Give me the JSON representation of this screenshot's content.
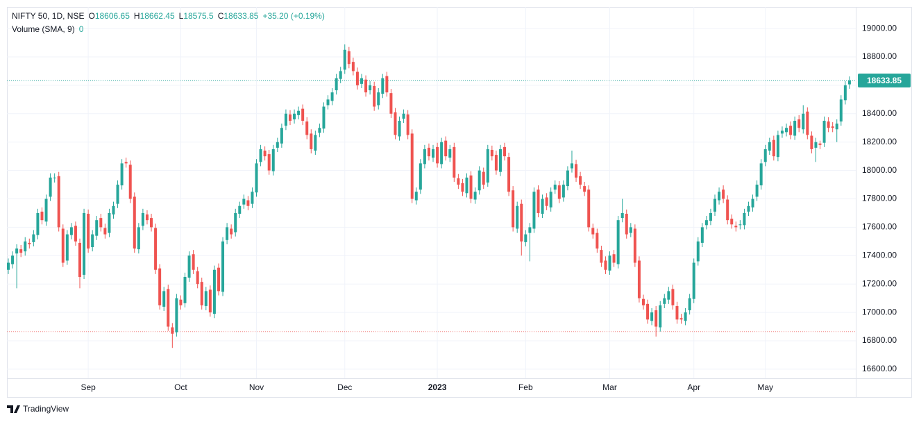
{
  "chart_data": {
    "type": "candlestick",
    "title": "NIFTY 50, 1D, NSE",
    "ohlc_labels": [
      "O",
      "H",
      "L",
      "C"
    ],
    "change": "+35.20 (+0.19%)",
    "indicator": "Volume (SMA, 9)",
    "indicator_value": 0,
    "brand": "TradingView",
    "up_color": "#26a69a",
    "down_color": "#ef5350",
    "grid": true,
    "horizontal_line": {
      "value": 16865,
      "color": "#ef5350"
    },
    "xlim": [
      -0.33,
      201.5
    ],
    "xticks": [
      {
        "value": 19,
        "label": "Sep"
      },
      {
        "value": 41,
        "label": "Oct"
      },
      {
        "value": 59,
        "label": "Nov"
      },
      {
        "value": 80,
        "label": "Dec"
      },
      {
        "value": 102,
        "label": "2023"
      },
      {
        "value": 123,
        "label": "Feb"
      },
      {
        "value": 143,
        "label": "Mar"
      },
      {
        "value": 163,
        "label": "Apr"
      },
      {
        "value": 180,
        "label": "May"
      }
    ],
    "ylim": [
      16536,
      19152
    ],
    "yticks": [
      {
        "value": 16600,
        "label": "16600.00"
      },
      {
        "value": 16800,
        "label": "16800.00"
      },
      {
        "value": 17000,
        "label": "17000.00"
      },
      {
        "value": 17200,
        "label": "17200.00"
      },
      {
        "value": 17400,
        "label": "17400.00"
      },
      {
        "value": 17600,
        "label": "17600.00"
      },
      {
        "value": 17800,
        "label": "17800.00"
      },
      {
        "value": 18000,
        "label": "18000.00"
      },
      {
        "value": 18200,
        "label": "18200.00"
      },
      {
        "value": 18400,
        "label": "18400.00"
      },
      {
        "value": 18600,
        "label": "18600.00"
      },
      {
        "value": 18800,
        "label": "18800.00"
      },
      {
        "value": 19000,
        "label": "19000.00"
      }
    ],
    "open": [
      17300,
      17340,
      17415,
      17445,
      17430,
      17490,
      17495,
      17545,
      17710,
      17640,
      17815,
      17945,
      17960,
      17590,
      17365,
      17545,
      17610,
      17490,
      17265,
      17695,
      17460,
      17540,
      17665,
      17595,
      17560,
      17690,
      17765,
      17895,
      18060,
      18040,
      17815,
      17445,
      17610,
      17690,
      17665,
      17595,
      17310,
      17040,
      17165,
      16895,
      16860,
      17090,
      17065,
      17245,
      17410,
      17290,
      17215,
      17045,
      17160,
      16990,
      17315,
      17145,
      17510,
      17590,
      17565,
      17695,
      17760,
      17790,
      17765,
      17845,
      18060,
      18140,
      18115,
      17995,
      18160,
      18190,
      18315,
      18395,
      18360,
      18390,
      18435,
      18345,
      18260,
      18140,
      18265,
      18295,
      18460,
      18490,
      18565,
      18645,
      18710,
      18840,
      18765,
      18695,
      18610,
      18640,
      18565,
      18595,
      18460,
      18540,
      18665,
      18545,
      18410,
      18240,
      18365,
      18395,
      18260,
      17790,
      17865,
      18045,
      18160,
      18090,
      18165,
      18045,
      18210,
      18090,
      18165,
      17945,
      17910,
      17840,
      17965,
      17795,
      17860,
      17990,
      17915,
      18145,
      18110,
      17990,
      18165,
      18095,
      17860,
      17590,
      17765,
      17495,
      17560,
      17590,
      17865,
      17695,
      17810,
      17740,
      17865,
      17895,
      17810,
      17890,
      18015,
      18045,
      17960,
      17890,
      17865,
      17595,
      17560,
      17440,
      17365,
      17295,
      17410,
      17340,
      17665,
      17695,
      17560,
      17590,
      17365,
      17095,
      17060,
      16940,
      17015,
      16895,
      17060,
      17090,
      17165,
      17045,
      16960,
      16940,
      17015,
      17095,
      17360,
      17490,
      17615,
      17645,
      17710,
      17790,
      17865,
      17795,
      17660,
      17610,
      17615,
      17615,
      17710,
      17740,
      17815,
      17895,
      18060,
      18140,
      18215,
      18095,
      18260,
      18270,
      18315,
      18245,
      18360,
      18290,
      18415,
      18245,
      18160,
      18190,
      18195,
      18345,
      18310,
      18290,
      18345,
      18495,
      18606.65
    ],
    "high": [
      17380,
      17430,
      17480,
      17475,
      17530,
      17520,
      17580,
      17730,
      17740,
      17830,
      17980,
      17980,
      17990,
      17620,
      17580,
      17630,
      17640,
      17520,
      17730,
      17725,
      17580,
      17680,
      17695,
      17625,
      17730,
      17780,
      17930,
      18080,
      18090,
      18070,
      17845,
      17630,
      17730,
      17720,
      17695,
      17625,
      17340,
      17180,
      17195,
      16925,
      17130,
      17120,
      17280,
      17430,
      17440,
      17320,
      17245,
      17180,
      17190,
      17330,
      17345,
      17530,
      17630,
      17620,
      17730,
      17780,
      17830,
      17820,
      17880,
      18080,
      18180,
      18170,
      18145,
      18180,
      18230,
      18330,
      18430,
      18425,
      18430,
      18450,
      18465,
      18375,
      18290,
      18280,
      18330,
      18480,
      18530,
      18580,
      18680,
      18730,
      18888,
      18870,
      18795,
      18725,
      18680,
      18670,
      18630,
      18625,
      18580,
      18680,
      18695,
      18575,
      18440,
      18380,
      18430,
      18425,
      18290,
      17880,
      18080,
      18180,
      18190,
      18180,
      18195,
      18230,
      18240,
      18180,
      18195,
      17975,
      17940,
      17980,
      17995,
      17880,
      18030,
      18020,
      18180,
      18175,
      18140,
      18180,
      18195,
      18125,
      17890,
      17780,
      17795,
      17580,
      17630,
      17880,
      17895,
      17830,
      17840,
      17880,
      17930,
      17925,
      17930,
      18030,
      18140,
      18075,
      17990,
      17920,
      17895,
      17625,
      17590,
      17470,
      17395,
      17430,
      17440,
      17680,
      17800,
      17725,
      17630,
      17620,
      17395,
      17125,
      17090,
      17030,
      17045,
      17080,
      17130,
      17180,
      17195,
      17075,
      16990,
      17030,
      17130,
      17380,
      17530,
      17630,
      17680,
      17730,
      17830,
      17880,
      17895,
      17825,
      17690,
      17640,
      17650,
      17730,
      17780,
      17830,
      17930,
      18080,
      18180,
      18230,
      18245,
      18280,
      18310,
      18330,
      18345,
      18380,
      18390,
      18460,
      18445,
      18275,
      18230,
      18210,
      18380,
      18375,
      18340,
      18360,
      18530,
      18630,
      18662.45
    ],
    "low": [
      17270,
      17310,
      17170,
      17390,
      17400,
      17450,
      17465,
      17515,
      17620,
      17610,
      17785,
      17915,
      17570,
      17320,
      17335,
      17515,
      17470,
      17170,
      17235,
      17420,
      17430,
      17510,
      17570,
      17520,
      17530,
      17660,
      17735,
      17865,
      18020,
      17770,
      17420,
      17415,
      17580,
      17620,
      17570,
      17270,
      17020,
      17010,
      16870,
      16750,
      16830,
      17020,
      17035,
      17215,
      17270,
      17170,
      17020,
      17015,
      16970,
      16960,
      17120,
      17115,
      17480,
      17520,
      17535,
      17665,
      17730,
      17720,
      17735,
      17815,
      18030,
      18070,
      17970,
      17965,
      18130,
      18160,
      18285,
      18320,
      18330,
      18360,
      18320,
      18220,
      18120,
      18110,
      18235,
      18265,
      18430,
      18460,
      18535,
      18615,
      18680,
      18720,
      18670,
      18570,
      18580,
      18520,
      18535,
      18420,
      18430,
      18510,
      18520,
      18370,
      18220,
      18210,
      18335,
      18220,
      17770,
      17760,
      17835,
      18015,
      18070,
      18060,
      18020,
      18015,
      18070,
      18060,
      17920,
      17870,
      17820,
      17810,
      17770,
      17765,
      17830,
      17870,
      17885,
      18070,
      17970,
      17960,
      18070,
      17820,
      17570,
      17560,
      17400,
      17465,
      17360,
      17560,
      17670,
      17665,
      17720,
      17710,
      17835,
      17770,
      17780,
      17860,
      17985,
      17920,
      17870,
      17820,
      17570,
      17520,
      17420,
      17320,
      17270,
      17265,
      17320,
      17310,
      17635,
      17520,
      17530,
      17320,
      17070,
      17020,
      16920,
      16910,
      16830,
      16865,
      17030,
      17060,
      17020,
      16920,
      16920,
      16910,
      16985,
      17065,
      17330,
      17460,
      17585,
      17615,
      17680,
      17760,
      17770,
      17620,
      17590,
      17570,
      17585,
      17585,
      17680,
      17710,
      17785,
      17865,
      18030,
      18110,
      18070,
      18065,
      18230,
      18240,
      18220,
      18215,
      18270,
      18260,
      18220,
      18120,
      18060,
      18150,
      18165,
      18270,
      18270,
      18200,
      18315,
      18465,
      18575.5
    ],
    "close": [
      17350,
      17400,
      17450,
      17420,
      17500,
      17480,
      17550,
      17700,
      17650,
      17800,
      17950,
      17950,
      17600,
      17350,
      17550,
      17600,
      17500,
      17250,
      17700,
      17450,
      17550,
      17650,
      17600,
      17550,
      17700,
      17750,
      17900,
      18050,
      18050,
      17800,
      17450,
      17600,
      17700,
      17650,
      17600,
      17300,
      17050,
      17150,
      16900,
      16850,
      17100,
      17050,
      17250,
      17400,
      17300,
      17200,
      17050,
      17150,
      17000,
      17300,
      17150,
      17500,
      17600,
      17550,
      17700,
      17750,
      17800,
      17750,
      17850,
      18050,
      18150,
      18100,
      18000,
      18150,
      18200,
      18300,
      18400,
      18350,
      18400,
      18420,
      18350,
      18250,
      18150,
      18250,
      18300,
      18450,
      18500,
      18550,
      18650,
      18700,
      18850,
      18750,
      18700,
      18600,
      18650,
      18550,
      18600,
      18450,
      18550,
      18650,
      18550,
      18400,
      18250,
      18350,
      18400,
      18250,
      17800,
      17850,
      18050,
      18150,
      18100,
      18150,
      18050,
      18200,
      18100,
      18150,
      17950,
      17900,
      17850,
      17950,
      17800,
      17850,
      18000,
      17900,
      18150,
      18100,
      18000,
      18150,
      18100,
      17850,
      17600,
      17750,
      17500,
      17550,
      17600,
      17850,
      17700,
      17800,
      17750,
      17850,
      17900,
      17800,
      17900,
      18000,
      18050,
      17950,
      17900,
      17850,
      17600,
      17550,
      17450,
      17350,
      17300,
      17400,
      17350,
      17650,
      17700,
      17550,
      17600,
      17350,
      17100,
      17050,
      16950,
      17000,
      16900,
      17050,
      17100,
      17150,
      17050,
      16950,
      16950,
      17000,
      17100,
      17350,
      17500,
      17600,
      17650,
      17700,
      17800,
      17850,
      17800,
      17650,
      17620,
      17600,
      17620,
      17700,
      17750,
      17800,
      17900,
      18050,
      18150,
      18200,
      18100,
      18250,
      18280,
      18300,
      18250,
      18350,
      18300,
      18400,
      18250,
      18150,
      18200,
      18180,
      18350,
      18300,
      18300,
      18330,
      18500,
      18600,
      18633.85
    ]
  }
}
